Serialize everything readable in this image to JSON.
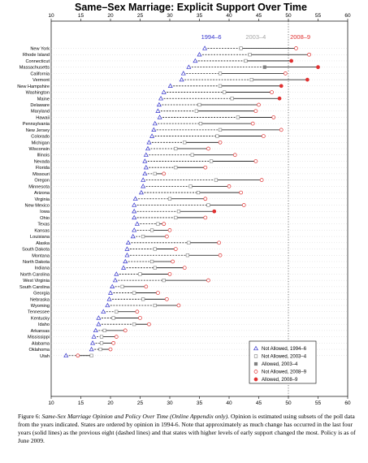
{
  "chart_data": {
    "type": "scatter",
    "title": "Same–Sex Marriage: Explicit Support Over Time",
    "xlim": [
      10,
      60
    ],
    "xticks": [
      10,
      15,
      20,
      25,
      30,
      35,
      40,
      45,
      50,
      55,
      60
    ],
    "reference_line_x": 50,
    "grid": false,
    "period_labels": [
      {
        "text": "1994–6",
        "x": 37,
        "color": "#3333cc"
      },
      {
        "text": "2003–4",
        "x": 44.5,
        "color": "#a6a6a6"
      },
      {
        "text": "2008–9",
        "x": 52,
        "color": "#e03030"
      }
    ],
    "legend_position": "bottom-right",
    "legend": [
      {
        "label": "Not Allowed, 1994–6",
        "marker": "triangle-open",
        "color": "#3333cc"
      },
      {
        "label": "Not Allowed, 2003–4",
        "marker": "square-open",
        "color": "#808080"
      },
      {
        "label": "Allowed, 2003–4",
        "marker": "square-filled",
        "color": "#808080"
      },
      {
        "label": "Not Allowed, 2008–9",
        "marker": "circle-open",
        "color": "#e03030"
      },
      {
        "label": "Allowed, 2008–9",
        "marker": "circle-filled",
        "color": "#e03030"
      }
    ],
    "states": [
      {
        "name": "New York",
        "v1994": 35.9,
        "v2003": 42.0,
        "v2008": 51.3,
        "allowed2003": false,
        "allowed2008": false
      },
      {
        "name": "Rhode Island",
        "v1994": 35.0,
        "v2003": 43.5,
        "v2008": 53.5,
        "allowed2003": false,
        "allowed2008": false
      },
      {
        "name": "Connecticut",
        "v1994": 34.3,
        "v2003": 42.8,
        "v2008": 50.5,
        "allowed2003": false,
        "allowed2008": true
      },
      {
        "name": "Massachusetts",
        "v1994": 33.2,
        "v2003": 46.0,
        "v2008": 55.0,
        "allowed2003": true,
        "allowed2008": true
      },
      {
        "name": "California",
        "v1994": 32.3,
        "v2003": 38.5,
        "v2008": 49.5,
        "allowed2003": false,
        "allowed2008": false
      },
      {
        "name": "Vermont",
        "v1994": 32.0,
        "v2003": 43.8,
        "v2008": 53.2,
        "allowed2003": false,
        "allowed2008": true
      },
      {
        "name": "New Hampshire",
        "v1994": 30.1,
        "v2003": 38.5,
        "v2008": 48.8,
        "allowed2003": false,
        "allowed2008": true
      },
      {
        "name": "Washington",
        "v1994": 29.0,
        "v2003": 39.2,
        "v2008": 47.2,
        "allowed2003": false,
        "allowed2008": false
      },
      {
        "name": "Maine",
        "v1994": 28.5,
        "v2003": 40.5,
        "v2008": 48.5,
        "allowed2003": false,
        "allowed2008": true
      },
      {
        "name": "Delaware",
        "v1994": 28.2,
        "v2003": 35.0,
        "v2008": 45.0,
        "allowed2003": false,
        "allowed2008": false
      },
      {
        "name": "Maryland",
        "v1994": 28.0,
        "v2003": 34.5,
        "v2008": 44.5,
        "allowed2003": false,
        "allowed2008": false
      },
      {
        "name": "Hawaii",
        "v1994": 28.3,
        "v2003": 41.5,
        "v2008": 47.5,
        "allowed2003": false,
        "allowed2008": false
      },
      {
        "name": "Pennsylvania",
        "v1994": 27.5,
        "v2003": 35.2,
        "v2008": 44.0,
        "allowed2003": false,
        "allowed2008": false
      },
      {
        "name": "New Jersey",
        "v1994": 27.3,
        "v2003": 38.5,
        "v2008": 48.8,
        "allowed2003": false,
        "allowed2008": false
      },
      {
        "name": "Colorado",
        "v1994": 27.0,
        "v2003": 38.0,
        "v2008": 45.8,
        "allowed2003": false,
        "allowed2008": false
      },
      {
        "name": "Michigan",
        "v1994": 26.5,
        "v2003": 32.5,
        "v2008": 38.5,
        "allowed2003": false,
        "allowed2008": false
      },
      {
        "name": "Wisconsin",
        "v1994": 26.3,
        "v2003": 31.0,
        "v2008": 36.5,
        "allowed2003": false,
        "allowed2008": false
      },
      {
        "name": "Illinois",
        "v1994": 26.0,
        "v2003": 33.8,
        "v2008": 41.0,
        "allowed2003": false,
        "allowed2008": false
      },
      {
        "name": "Nevada",
        "v1994": 25.8,
        "v2003": 37.0,
        "v2008": 44.5,
        "allowed2003": false,
        "allowed2008": false
      },
      {
        "name": "Florida",
        "v1994": 26.0,
        "v2003": 31.0,
        "v2008": 36.0,
        "allowed2003": false,
        "allowed2008": false
      },
      {
        "name": "Missouri",
        "v1994": 25.8,
        "v2003": 27.5,
        "v2008": 29.0,
        "allowed2003": false,
        "allowed2008": false
      },
      {
        "name": "Oregon",
        "v1994": 25.5,
        "v2003": 37.8,
        "v2008": 45.5,
        "allowed2003": false,
        "allowed2008": false
      },
      {
        "name": "Minnesota",
        "v1994": 25.5,
        "v2003": 33.5,
        "v2008": 40.0,
        "allowed2003": false,
        "allowed2008": false
      },
      {
        "name": "Arizona",
        "v1994": 25.2,
        "v2003": 34.8,
        "v2008": 42.0,
        "allowed2003": false,
        "allowed2008": false
      },
      {
        "name": "Virginia",
        "v1994": 24.2,
        "v2003": 30.0,
        "v2008": 36.0,
        "allowed2003": false,
        "allowed2008": false
      },
      {
        "name": "New Mexico",
        "v1994": 24.0,
        "v2003": 36.5,
        "v2008": 42.5,
        "allowed2003": false,
        "allowed2008": false
      },
      {
        "name": "Iowa",
        "v1994": 24.0,
        "v2003": 31.5,
        "v2008": 37.5,
        "allowed2003": false,
        "allowed2008": true
      },
      {
        "name": "Ohio",
        "v1994": 24.0,
        "v2003": 31.0,
        "v2008": 36.0,
        "allowed2003": false,
        "allowed2008": false
      },
      {
        "name": "Texas",
        "v1994": 24.5,
        "v2003": 28.0,
        "v2008": 29.0,
        "allowed2003": false,
        "allowed2008": false
      },
      {
        "name": "Kansas",
        "v1994": 24.0,
        "v2003": 27.0,
        "v2008": 30.0,
        "allowed2003": false,
        "allowed2008": false
      },
      {
        "name": "Louisiana",
        "v1994": 23.8,
        "v2003": 25.5,
        "v2008": 29.5,
        "allowed2003": false,
        "allowed2008": false
      },
      {
        "name": "Alaska",
        "v1994": 23.0,
        "v2003": 33.2,
        "v2008": 38.3,
        "allowed2003": false,
        "allowed2008": false
      },
      {
        "name": "South Dakota",
        "v1994": 22.8,
        "v2003": 27.5,
        "v2008": 31.0,
        "allowed2003": false,
        "allowed2008": false
      },
      {
        "name": "Montana",
        "v1994": 22.8,
        "v2003": 33.0,
        "v2008": 38.5,
        "allowed2003": false,
        "allowed2008": false
      },
      {
        "name": "North Dakota",
        "v1994": 22.5,
        "v2003": 27.0,
        "v2008": 30.5,
        "allowed2003": false,
        "allowed2008": false
      },
      {
        "name": "Indiana",
        "v1994": 22.2,
        "v2003": 27.5,
        "v2008": 32.5,
        "allowed2003": false,
        "allowed2008": false
      },
      {
        "name": "North Carolina",
        "v1994": 21.0,
        "v2003": 25.0,
        "v2008": 30.0,
        "allowed2003": false,
        "allowed2008": false
      },
      {
        "name": "West Virginia",
        "v1994": 20.8,
        "v2003": 29.0,
        "v2008": 36.5,
        "allowed2003": false,
        "allowed2008": false
      },
      {
        "name": "South Carolina",
        "v1994": 20.3,
        "v2003": 22.0,
        "v2008": 26.0,
        "allowed2003": false,
        "allowed2008": false
      },
      {
        "name": "Georgia",
        "v1994": 20.0,
        "v2003": 24.0,
        "v2008": 28.0,
        "allowed2003": false,
        "allowed2008": false
      },
      {
        "name": "Nebraska",
        "v1994": 19.8,
        "v2003": 25.5,
        "v2008": 29.5,
        "allowed2003": false,
        "allowed2008": false
      },
      {
        "name": "Wyoming",
        "v1994": 19.5,
        "v2003": 27.5,
        "v2008": 31.5,
        "allowed2003": false,
        "allowed2008": false
      },
      {
        "name": "Tennessee",
        "v1994": 18.8,
        "v2003": 21.0,
        "v2008": 24.5,
        "allowed2003": false,
        "allowed2008": false
      },
      {
        "name": "Kentucky",
        "v1994": 18.0,
        "v2003": 20.5,
        "v2008": 25.0,
        "allowed2003": false,
        "allowed2008": false
      },
      {
        "name": "Idaho",
        "v1994": 18.0,
        "v2003": 24.0,
        "v2008": 26.5,
        "allowed2003": false,
        "allowed2008": false
      },
      {
        "name": "Arkansas",
        "v1994": 17.5,
        "v2003": 19.0,
        "v2008": 22.5,
        "allowed2003": false,
        "allowed2008": false
      },
      {
        "name": "Mississippi",
        "v1994": 17.2,
        "v2003": 18.5,
        "v2008": 21.0,
        "allowed2003": false,
        "allowed2008": false
      },
      {
        "name": "Alabama",
        "v1994": 17.0,
        "v2003": 18.5,
        "v2008": 20.5,
        "allowed2003": false,
        "allowed2008": false
      },
      {
        "name": "Oklahoma",
        "v1994": 16.8,
        "v2003": 18.3,
        "v2008": 20.0,
        "allowed2003": false,
        "allowed2008": false
      },
      {
        "name": "Utah",
        "v1994": 12.5,
        "v2003": 16.8,
        "v2008": 14.5,
        "allowed2003": false,
        "allowed2008": false
      }
    ]
  },
  "caption": {
    "label": "Figure 6: ",
    "title": "Same-Sex Marriage Opinion and Policy Over Time (Online Appendix only).",
    "text": " Opinion is estimated using subsets of the poll data from the years indicated. States are ordered by opinion in 1994-6. Note that approximately as much change has occurred in the last four years (solid lines) as the previous eight (dashed lines) and that states with higher levels of early support changed the most. Policy is as of June 2009."
  }
}
